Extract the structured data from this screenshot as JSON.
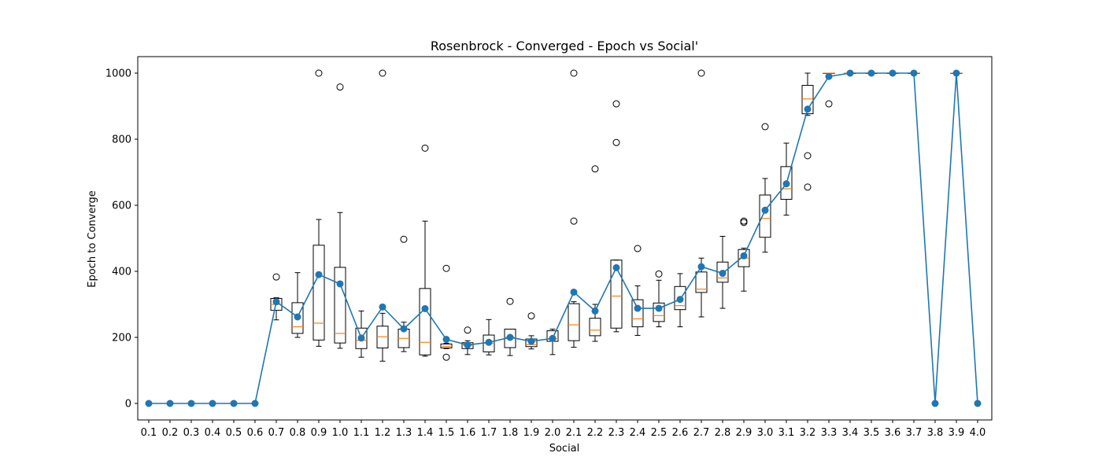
{
  "chart_data": {
    "type": "box",
    "title": "Rosenbrock - Converged - Epoch vs Social'",
    "xlabel": "Social",
    "ylabel": "Epoch to Converge",
    "categories": [
      "0.1",
      "0.2",
      "0.3",
      "0.4",
      "0.5",
      "0.6",
      "0.7",
      "0.8",
      "0.9",
      "1.0",
      "1.1",
      "1.2",
      "1.3",
      "1.4",
      "1.5",
      "1.6",
      "1.7",
      "1.8",
      "1.9",
      "2.0",
      "2.1",
      "2.2",
      "2.3",
      "2.4",
      "2.5",
      "2.6",
      "2.7",
      "2.8",
      "2.9",
      "3.0",
      "3.1",
      "3.2",
      "3.3",
      "3.4",
      "3.5",
      "3.6",
      "3.7",
      "3.8",
      "3.9",
      "4.0"
    ],
    "yticks": [
      0,
      200,
      400,
      600,
      800,
      1000
    ],
    "ylim": [
      -50,
      1050
    ],
    "grid": false,
    "colors": {
      "box": "#000000",
      "median": "#ff7f0e",
      "mean_line": "#1f77b4",
      "outlier": "#000000"
    },
    "boxes": [
      null,
      null,
      null,
      null,
      null,
      null,
      {
        "whislo": 253,
        "q1": 282,
        "med": 300,
        "q3": 318,
        "whishi": 320,
        "fliers": [
          383
        ]
      },
      {
        "whislo": 200,
        "q1": 212,
        "med": 232,
        "q3": 305,
        "whishi": 396,
        "fliers": []
      },
      {
        "whislo": 173,
        "q1": 192,
        "med": 243,
        "q3": 479,
        "whishi": 557,
        "fliers": [
          1000
        ]
      },
      {
        "whislo": 167,
        "q1": 183,
        "med": 212,
        "q3": 412,
        "whishi": 578,
        "fliers": [
          958
        ]
      },
      {
        "whislo": 140,
        "q1": 166,
        "med": 191,
        "q3": 228,
        "whishi": 280,
        "fliers": []
      },
      {
        "whislo": 128,
        "q1": 168,
        "med": 202,
        "q3": 234,
        "whishi": 273,
        "fliers": [
          1000
        ]
      },
      {
        "whislo": 157,
        "q1": 169,
        "med": 197,
        "q3": 225,
        "whishi": 246,
        "fliers": [
          497
        ]
      },
      {
        "whislo": 143,
        "q1": 147,
        "med": 185,
        "q3": 348,
        "whishi": 552,
        "fliers": [
          773
        ]
      },
      {
        "whislo": 166,
        "q1": 168,
        "med": 173,
        "q3": 180,
        "whishi": 182,
        "fliers": [
          409,
          140
        ]
      },
      {
        "whislo": 148,
        "q1": 166,
        "med": 176,
        "q3": 184,
        "whishi": 190,
        "fliers": [
          222
        ]
      },
      {
        "whislo": 147,
        "q1": 156,
        "med": 182,
        "q3": 207,
        "whishi": 254,
        "fliers": []
      },
      {
        "whislo": 145,
        "q1": 169,
        "med": 200,
        "q3": 225,
        "whishi": 225,
        "fliers": [
          309
        ]
      },
      {
        "whislo": 165,
        "q1": 172,
        "med": 178,
        "q3": 195,
        "whishi": 205,
        "fliers": [
          265
        ]
      },
      {
        "whislo": 148,
        "q1": 188,
        "med": 196,
        "q3": 220,
        "whishi": 225,
        "fliers": []
      },
      {
        "whislo": 170,
        "q1": 190,
        "med": 238,
        "q3": 302,
        "whishi": 308,
        "fliers": [
          552,
          1000
        ]
      },
      {
        "whislo": 188,
        "q1": 205,
        "med": 222,
        "q3": 258,
        "whishi": 300,
        "fliers": [
          710
        ]
      },
      {
        "whislo": 217,
        "q1": 228,
        "med": 325,
        "q3": 434,
        "whishi": 434,
        "fliers": [
          790,
          907
        ]
      },
      {
        "whislo": 206,
        "q1": 232,
        "med": 256,
        "q3": 314,
        "whishi": 356,
        "fliers": [
          469
        ]
      },
      {
        "whislo": 232,
        "q1": 248,
        "med": 266,
        "q3": 304,
        "whishi": 373,
        "fliers": [
          392
        ]
      },
      {
        "whislo": 232,
        "q1": 284,
        "med": 296,
        "q3": 354,
        "whishi": 393,
        "fliers": []
      },
      {
        "whislo": 262,
        "q1": 336,
        "med": 346,
        "q3": 398,
        "whishi": 440,
        "fliers": [
          1000
        ]
      },
      {
        "whislo": 288,
        "q1": 367,
        "med": 380,
        "q3": 428,
        "whishi": 506,
        "fliers": []
      },
      {
        "whislo": 340,
        "q1": 414,
        "med": 440,
        "q3": 466,
        "whishi": 470,
        "fliers": [
          548,
          552
        ]
      },
      {
        "whislo": 458,
        "q1": 503,
        "med": 560,
        "q3": 631,
        "whishi": 681,
        "fliers": [
          838
        ]
      },
      {
        "whislo": 570,
        "q1": 618,
        "med": 650,
        "q3": 717,
        "whishi": 788,
        "fliers": []
      },
      {
        "whislo": 872,
        "q1": 877,
        "med": 922,
        "q3": 963,
        "whishi": 1000,
        "fliers": [
          750,
          655
        ]
      },
      {
        "whislo": 1000,
        "q1": 1000,
        "med": 1000,
        "q3": 1000,
        "whishi": 1000,
        "fliers": [
          907
        ]
      },
      {
        "whislo": 1000,
        "q1": 1000,
        "med": 1000,
        "q3": 1000,
        "whishi": 1000,
        "fliers": []
      },
      {
        "whislo": 1000,
        "q1": 1000,
        "med": 1000,
        "q3": 1000,
        "whishi": 1000,
        "fliers": []
      },
      {
        "whislo": 1000,
        "q1": 1000,
        "med": 1000,
        "q3": 1000,
        "whishi": 1000,
        "fliers": []
      },
      {
        "whislo": 1000,
        "q1": 1000,
        "med": 1000,
        "q3": 1000,
        "whishi": 1000,
        "fliers": []
      },
      null,
      {
        "whislo": 1000,
        "q1": 1000,
        "med": 1000,
        "q3": 1000,
        "whishi": 1000,
        "fliers": []
      },
      null
    ],
    "series": [
      {
        "values": [
          0,
          0,
          0,
          0,
          0,
          0,
          308,
          262,
          390,
          362,
          198,
          292,
          226,
          287,
          194,
          177,
          185,
          200,
          188,
          197,
          337,
          280,
          411,
          288,
          288,
          315,
          414,
          394,
          447,
          585,
          665,
          891,
          990,
          1000,
          1000,
          1000,
          1000,
          0,
          1000,
          0
        ]
      }
    ]
  }
}
